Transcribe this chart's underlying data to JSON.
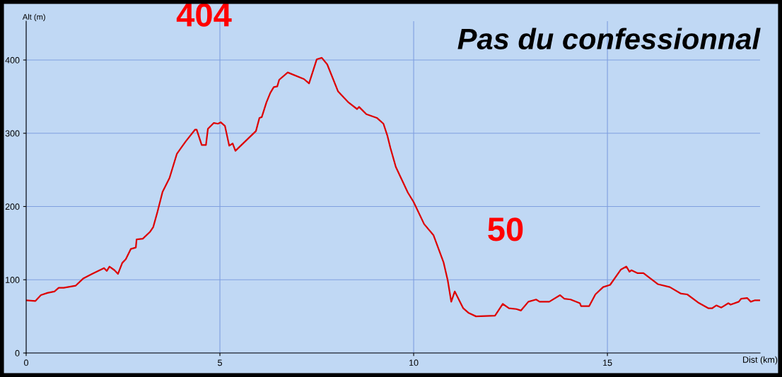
{
  "chart_data": {
    "type": "line",
    "title": "Pas du confessionnal",
    "xlabel": "Dist (km)",
    "ylabel": "Alt (m)",
    "x": [
      0,
      0.24,
      0.38,
      0.55,
      0.73,
      0.84,
      0.97,
      1.28,
      1.48,
      1.7,
      2.01,
      2.08,
      2.15,
      2.28,
      2.37,
      2.48,
      2.57,
      2.7,
      2.83,
      2.85,
      3.01,
      3.19,
      3.28,
      3.39,
      3.52,
      3.7,
      3.89,
      4.12,
      4.36,
      4.4,
      4.53,
      4.64,
      4.69,
      4.84,
      4.95,
      5.02,
      5.13,
      5.24,
      5.33,
      5.4,
      5.93,
      6.02,
      6.08,
      6.2,
      6.3,
      6.39,
      6.48,
      6.53,
      6.75,
      7.17,
      7.3,
      7.5,
      7.63,
      7.77,
      8.05,
      8.32,
      8.54,
      8.59,
      8.78,
      9.05,
      9.22,
      9.32,
      9.4,
      9.54,
      9.85,
      10.0,
      10.27,
      10.51,
      10.77,
      10.88,
      10.97,
      11.06,
      11.28,
      11.41,
      11.61,
      12.1,
      12.3,
      12.46,
      12.65,
      12.77,
      12.96,
      13.16,
      13.25,
      13.5,
      13.78,
      13.89,
      14.05,
      14.29,
      14.32,
      14.53,
      14.69,
      14.89,
      15.07,
      15.35,
      15.49,
      15.57,
      15.62,
      15.78,
      15.93,
      16.3,
      16.61,
      16.9,
      17.06,
      17.34,
      17.61,
      17.7,
      17.81,
      17.94,
      18.12,
      18.18,
      18.39,
      18.45,
      18.61,
      18.7,
      18.81,
      18.94
    ],
    "series": [
      {
        "color": "#dd0000",
        "values": [
          72,
          71,
          79,
          82,
          84,
          89,
          89,
          92,
          102,
          108,
          116,
          112,
          118,
          113,
          108,
          123,
          128,
          142,
          144,
          155,
          156,
          165,
          172,
          193,
          220,
          239,
          272,
          289,
          305,
          305,
          284,
          284,
          306,
          314,
          313,
          315,
          310,
          283,
          286,
          276,
          303,
          321,
          322,
          342,
          355,
          363,
          364,
          373,
          383,
          374,
          368,
          401,
          403,
          394,
          357,
          342,
          333,
          336,
          326,
          321,
          313,
          297,
          280,
          254,
          219,
          206,
          176,
          161,
          124,
          99,
          70,
          84,
          61,
          55,
          50,
          51,
          67,
          61,
          60,
          58,
          70,
          73,
          70,
          70,
          79,
          74,
          73,
          68,
          64,
          64,
          80,
          90,
          93,
          114,
          118,
          111,
          113,
          109,
          109,
          94,
          90,
          81,
          80,
          69,
          61,
          61,
          65,
          62,
          68,
          66,
          70,
          74,
          75,
          70,
          72,
          72
        ]
      }
    ],
    "xlim": [
      0,
      18.94
    ],
    "ylim": [
      0,
      453
    ],
    "xticks": [
      0,
      5,
      10,
      15
    ],
    "yticks": [
      0,
      100,
      200,
      300,
      400
    ],
    "grid": true,
    "marker": "none",
    "line_style": "solid",
    "annotations": [
      {
        "text": "404",
        "x": 7.63,
        "y": 403
      },
      {
        "text": "50",
        "x": 11.61,
        "y": 50
      }
    ]
  }
}
